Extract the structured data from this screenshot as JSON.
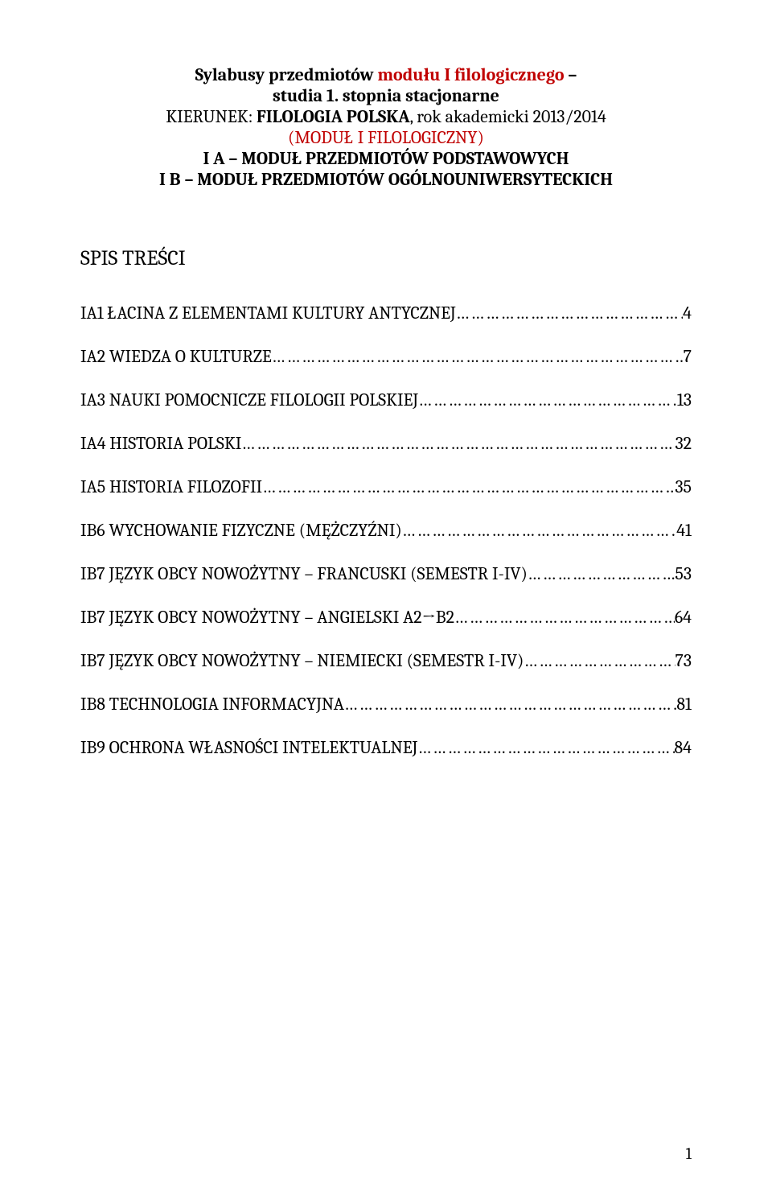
{
  "header": {
    "title_prefix": "Sylabusy przedmiotów ",
    "title_red": "modułu I filologicznego",
    "title_suffix": " –",
    "line2_prefix": "studia 1. stopnia ",
    "line2_bold": "stacjonarne",
    "kierunek_label": "KIERUNEK: ",
    "kierunek_bold": "FILOLOGIA POLSKA",
    "kierunek_suffix": ", rok akademicki 2013/2014",
    "module": "(MODUŁ I FILOLOGICZNY)",
    "level_a": "I A – MODUŁ PRZEDMIOTÓW PODSTAWOWYCH",
    "level_b": "I B – MODUŁ PRZEDMIOTÓW OGÓLNOUNIWERSYTECKICH"
  },
  "spis_title": "SPIS TREŚCI",
  "toc": [
    {
      "label": "IA1 ŁACINA Z ELEMENTAMI KULTURY ANTYCZNEJ",
      "page": "4"
    },
    {
      "label": "IA2 WIEDZA O KULTURZE",
      "page": "7"
    },
    {
      "label": "IA3 NAUKI POMOCNICZE FILOLOGII POLSKIEJ",
      "page": "13"
    },
    {
      "label": "IA4 HISTORIA POLSKI",
      "page": "32"
    },
    {
      "label": "IA5 HISTORIA FILOZOFII",
      "page": "35"
    },
    {
      "label": "IB6 WYCHOWANIE FIZYCZNE (MĘŻCZYŹNI)",
      "page": "41"
    },
    {
      "label": "IB7 JĘZYK OBCY NOWOŻYTNY – FRANCUSKI (SEMESTR I-IV)",
      "page": "53"
    },
    {
      "label": "IB7 JĘZYK OBCY NOWOŻYTNY – ANGIELSKI A2→B2",
      "page": "64"
    },
    {
      "label": "IB7 JĘZYK OBCY NOWOŻYTNY – NIEMIECKI (SEMESTR I-IV)",
      "page": "73"
    },
    {
      "label": "IB8 TECHNOLOGIA INFORMACYJNA",
      "page": "81"
    },
    {
      "label": "IB9 OCHRONA WŁASNOŚCI INTELEKTUALNEJ",
      "page": "84"
    }
  ],
  "page_number": "1",
  "colors": {
    "red": "#c00000",
    "text": "#000000",
    "background": "#ffffff"
  }
}
